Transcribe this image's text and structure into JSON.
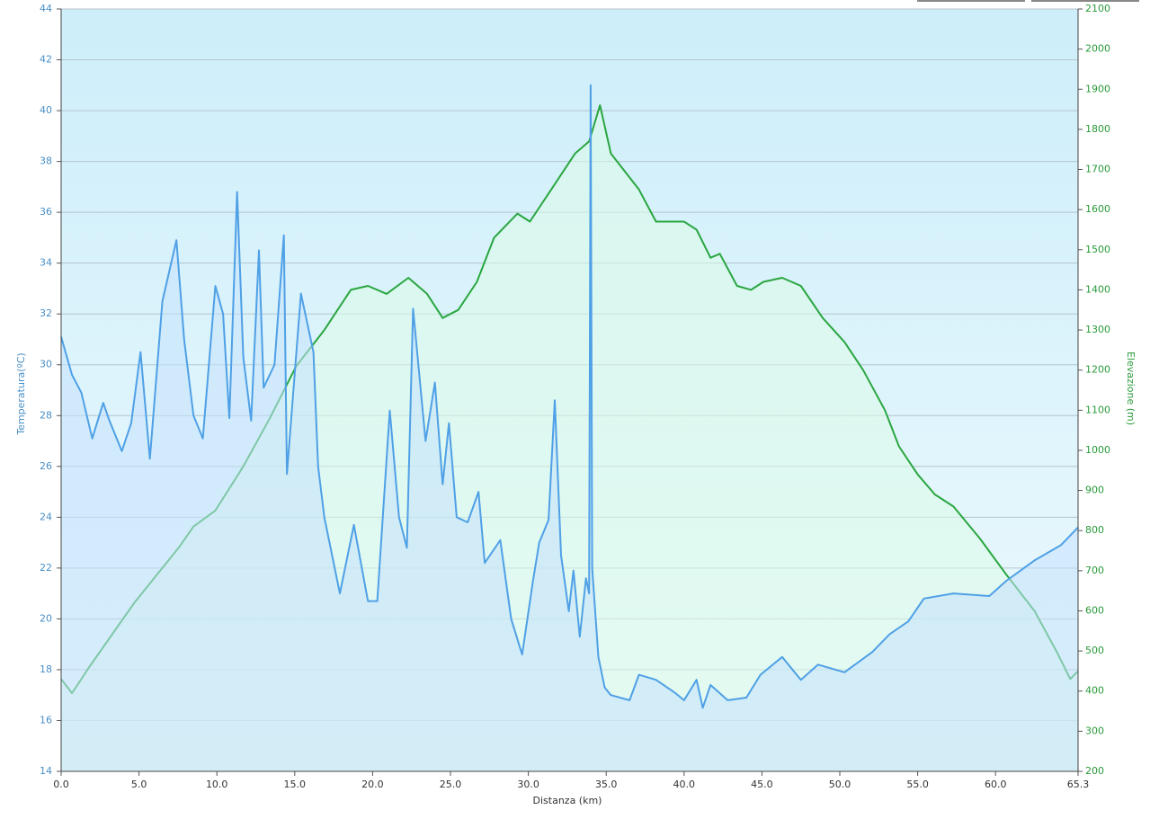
{
  "chart_data": {
    "type": "line",
    "xlabel": "Distanza  (km)",
    "ylabel": "Temperatura(ºC)",
    "y2label": "Elevazione (m)",
    "xlim": [
      0,
      65.3
    ],
    "xticks": [
      {
        "value": 0,
        "label": "0.0"
      },
      {
        "value": 5,
        "label": "5.0"
      },
      {
        "value": 10,
        "label": "10.0"
      },
      {
        "value": 15,
        "label": "15.0"
      },
      {
        "value": 20,
        "label": "20.0"
      },
      {
        "value": 25,
        "label": "25.0"
      },
      {
        "value": 30,
        "label": "30.0"
      },
      {
        "value": 35,
        "label": "35.0"
      },
      {
        "value": 40,
        "label": "40.0"
      },
      {
        "value": 45,
        "label": "45.0"
      },
      {
        "value": 50,
        "label": "50.0"
      },
      {
        "value": 55,
        "label": "55.0"
      },
      {
        "value": 60,
        "label": "60.0"
      },
      65.3
    ],
    "ylim": [
      14,
      44
    ],
    "yticks": [
      14,
      16,
      18,
      20,
      22,
      24,
      26,
      28,
      30,
      32,
      34,
      36,
      38,
      40,
      42,
      44
    ],
    "y2lim": [
      200,
      2100
    ],
    "y2ticks": [
      200,
      300,
      400,
      500,
      600,
      700,
      800,
      900,
      1000,
      1100,
      1200,
      1300,
      1400,
      1500,
      1600,
      1700,
      1800,
      1900,
      2000,
      2100
    ],
    "grid": true,
    "series": [
      {
        "name": "Elevazione",
        "axis": "y2",
        "color": "#2aa640",
        "fill": "#dcfbe8",
        "x": [
          0,
          0.7,
          1.8,
          4.7,
          7.6,
          8.5,
          9.9,
          11.7,
          13.4,
          15.1,
          16.9,
          18.6,
          19.7,
          20.9,
          22.3,
          23.5,
          24.5,
          25.5,
          26.7,
          27.8,
          29.3,
          30.1,
          31.3,
          33,
          33.9,
          34.6,
          35.3,
          37.1,
          38.2,
          40,
          40.8,
          41.7,
          42.3,
          43.4,
          44.3,
          45.1,
          46.3,
          47.5,
          48.9,
          50.3,
          51.5,
          52.9,
          53.8,
          55,
          56.1,
          57.3,
          59,
          60.7,
          62.5,
          63.9,
          64.8,
          65.3
        ],
        "values": [
          430,
          395,
          460,
          620,
          760,
          810,
          850,
          960,
          1080,
          1210,
          1300,
          1400,
          1410,
          1390,
          1430,
          1390,
          1330,
          1350,
          1420,
          1530,
          1590,
          1570,
          1640,
          1740,
          1770,
          1860,
          1740,
          1650,
          1570,
          1570,
          1550,
          1480,
          1490,
          1410,
          1400,
          1420,
          1430,
          1410,
          1330,
          1270,
          1200,
          1100,
          1010,
          940,
          890,
          860,
          780,
          690,
          600,
          500,
          430,
          450
        ]
      },
      {
        "name": "Temperatura",
        "axis": "y",
        "color": "#4fa0e6",
        "fill": "#c4e2fb",
        "x": [
          0,
          0.7,
          1.3,
          2.0,
          2.7,
          3.1,
          3.9,
          4.5,
          5.1,
          5.7,
          6.5,
          7.4,
          7.9,
          8.5,
          9.1,
          9.9,
          10.4,
          10.8,
          11.3,
          11.7,
          12.2,
          12.7,
          13,
          13.7,
          14.3,
          14.5,
          15.4,
          16.2,
          16.5,
          16.9,
          17.9,
          18.8,
          19.7,
          20.3,
          21.1,
          21.7,
          22.2,
          22.6,
          23.4,
          24,
          24.5,
          24.9,
          25.4,
          26.1,
          26.8,
          27.2,
          28.2,
          28.9,
          29.6,
          30.3,
          30.7,
          31.3,
          31.7,
          32.1,
          32.6,
          32.9,
          33.3,
          33.7,
          33.9,
          34.0,
          34.1,
          34.5,
          34.9,
          35.3,
          36.5,
          37.1,
          38.2,
          39.4,
          40,
          40.8,
          41.2,
          41.7,
          42.8,
          44,
          44.9,
          46.3,
          47.5,
          48.6,
          50.3,
          52.1,
          53.2,
          54.4,
          55.4,
          57.3,
          59.6,
          60.7,
          62.5,
          64.2,
          65.3
        ],
        "values": [
          31.1,
          29.6,
          28.9,
          27.1,
          28.5,
          27.8,
          26.6,
          27.7,
          30.5,
          26.3,
          32.5,
          34.9,
          31,
          28,
          27.1,
          33.1,
          32,
          27.9,
          36.8,
          30.3,
          27.8,
          34.5,
          29.1,
          30,
          35.1,
          25.7,
          32.8,
          30.5,
          26,
          24,
          21,
          23.7,
          20.7,
          20.7,
          28.2,
          24,
          22.8,
          32.2,
          27,
          29.3,
          25.3,
          27.7,
          24,
          23.8,
          25,
          22.2,
          23.1,
          20,
          18.6,
          21.5,
          23,
          23.9,
          28.6,
          22.5,
          20.3,
          21.9,
          19.3,
          21.6,
          21,
          41,
          22,
          18.5,
          17.3,
          17,
          16.8,
          17.8,
          17.6,
          17.1,
          16.8,
          17.6,
          16.5,
          17.4,
          16.8,
          16.9,
          17.8,
          18.5,
          17.6,
          18.2,
          17.9,
          18.7,
          19.4,
          19.9,
          20.8,
          21,
          20.9,
          21.5,
          22.3,
          22.9,
          23.6
        ]
      }
    ]
  }
}
